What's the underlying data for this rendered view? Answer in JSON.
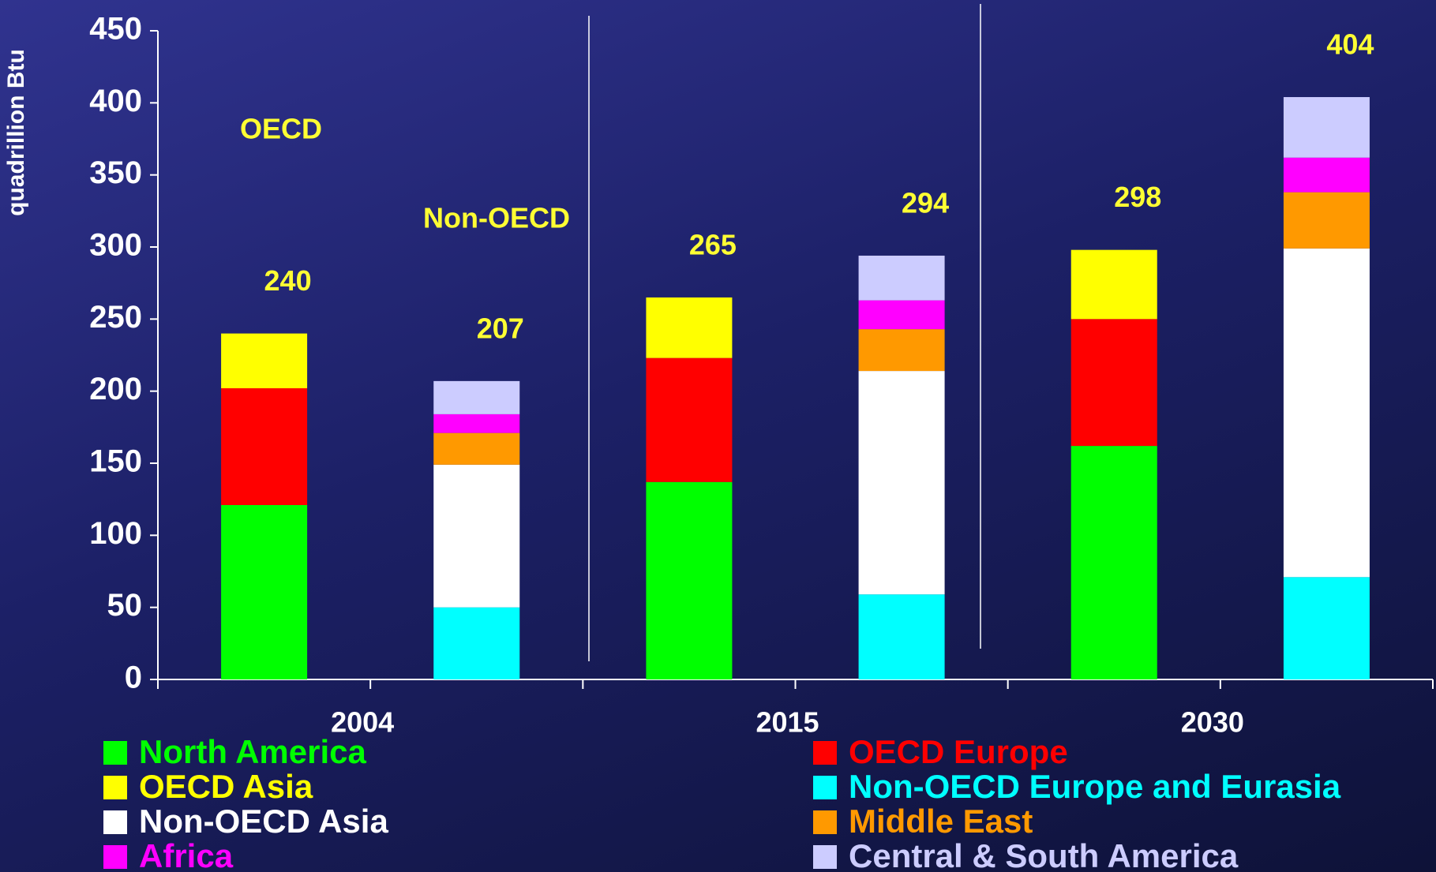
{
  "chart_data": {
    "type": "stacked_bar",
    "y_label": "quadrillion Btu",
    "categories": [
      "2004",
      null,
      "2015",
      null,
      "2030",
      null
    ],
    "annotations": [
      "OECD",
      "Non-OECD"
    ],
    "totals": [
      240,
      207,
      265,
      294,
      298,
      404
    ],
    "series": [
      {
        "name": "North America",
        "color": "#00ff00",
        "values": [
          121,
          null,
          137,
          null,
          162,
          null
        ]
      },
      {
        "name": "OECD Europe",
        "color": "#ff0000",
        "values": [
          81,
          null,
          86,
          null,
          88,
          null
        ]
      },
      {
        "name": "OECD Asia",
        "color": "#ffff00",
        "values": [
          38,
          null,
          42,
          null,
          48,
          null
        ]
      },
      {
        "name": "Non-OECD Europe and Eurasia",
        "color": "#00ffff",
        "values": [
          null,
          50,
          null,
          59,
          null,
          71
        ]
      },
      {
        "name": "Non-OECD Asia",
        "color": "#ffffff",
        "values": [
          null,
          99,
          null,
          155,
          null,
          228
        ]
      },
      {
        "name": "Middle East",
        "color": "#ff9900",
        "values": [
          null,
          22,
          null,
          29,
          null,
          39
        ]
      },
      {
        "name": "Africa",
        "color": "#ff00ff",
        "values": [
          null,
          13,
          null,
          20,
          null,
          24
        ]
      },
      {
        "name": "Central & South America",
        "color": "#ccccff",
        "values": [
          null,
          23,
          null,
          31,
          null,
          42
        ]
      }
    ],
    "ylim": [
      0,
      450
    ],
    "yticks": [
      0,
      50,
      100,
      150,
      200,
      250,
      300,
      350,
      400,
      450
    ],
    "grid": false,
    "total_color": "#ffff33"
  }
}
